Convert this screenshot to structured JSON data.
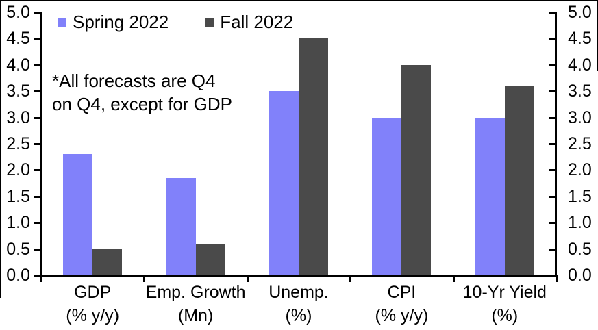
{
  "chart_data": {
    "type": "bar",
    "title": "",
    "xlabel": "",
    "ylabel": "",
    "categories": [
      {
        "label": "GDP",
        "sublabel": "(% y/y)"
      },
      {
        "label": "Emp. Growth",
        "sublabel": "(Mn)"
      },
      {
        "label": "Unemp.",
        "sublabel": "(%)"
      },
      {
        "label": "CPI",
        "sublabel": "(% y/y)"
      },
      {
        "label": "10-Yr Yield",
        "sublabel": "(%)"
      }
    ],
    "series": [
      {
        "name": "Spring 2022",
        "color": "#8181fa",
        "values": [
          2.3,
          1.85,
          3.5,
          3.0,
          3.0
        ]
      },
      {
        "name": "Fall 2022",
        "color": "#4a4a4a",
        "values": [
          0.5,
          0.6,
          4.5,
          4.0,
          3.6
        ]
      }
    ],
    "ylim": [
      0,
      5
    ],
    "ytick_step": 0.5,
    "ytick_labels": [
      "0.0",
      "0.5",
      "1.0",
      "1.5",
      "2.0",
      "2.5",
      "3.0",
      "3.5",
      "4.0",
      "4.5",
      "5.0"
    ],
    "dual_y_axis": true,
    "grid": false,
    "legend_position": "top-left",
    "annotation": "*All forecasts are Q4 on Q4, except for GDP",
    "axis_color": "#000000"
  },
  "annotation": {
    "line1": "*All forecasts are Q4",
    "line2": "on Q4, except for GDP"
  }
}
